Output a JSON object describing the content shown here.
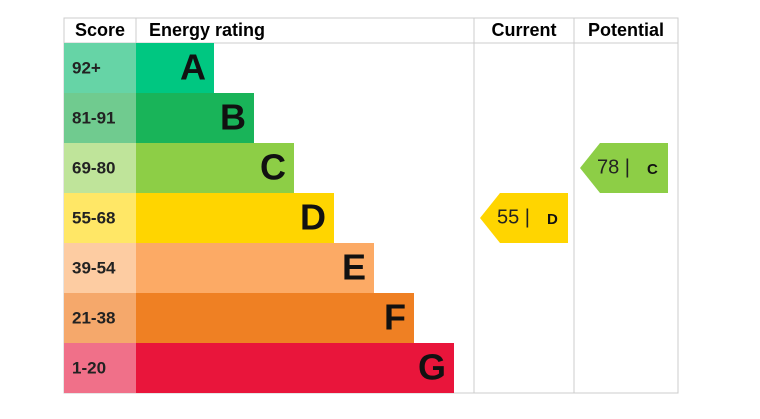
{
  "header": {
    "score": "Score",
    "rating": "Energy rating",
    "current": "Current",
    "potential": "Potential"
  },
  "rows": [
    {
      "score": "92+",
      "letter": "A",
      "color": "#00c781",
      "light": "#66d4a6"
    },
    {
      "score": "81-91",
      "letter": "B",
      "color": "#19b459",
      "light": "#70cb8f"
    },
    {
      "score": "69-80",
      "letter": "C",
      "color": "#8dce46",
      "light": "#bfe49a"
    },
    {
      "score": "55-68",
      "letter": "D",
      "color": "#ffd500",
      "light": "#ffe766"
    },
    {
      "score": "39-54",
      "letter": "E",
      "color": "#fcaa65",
      "light": "#fdcca2"
    },
    {
      "score": "21-38",
      "letter": "F",
      "color": "#ef8023",
      "light": "#f5a86b"
    },
    {
      "score": "1-20",
      "letter": "G",
      "color": "#e9153b",
      "light": "#f07089"
    }
  ],
  "current": {
    "label": "55 |",
    "band": "D"
  },
  "potential": {
    "label": "78 |",
    "band": "C"
  }
}
